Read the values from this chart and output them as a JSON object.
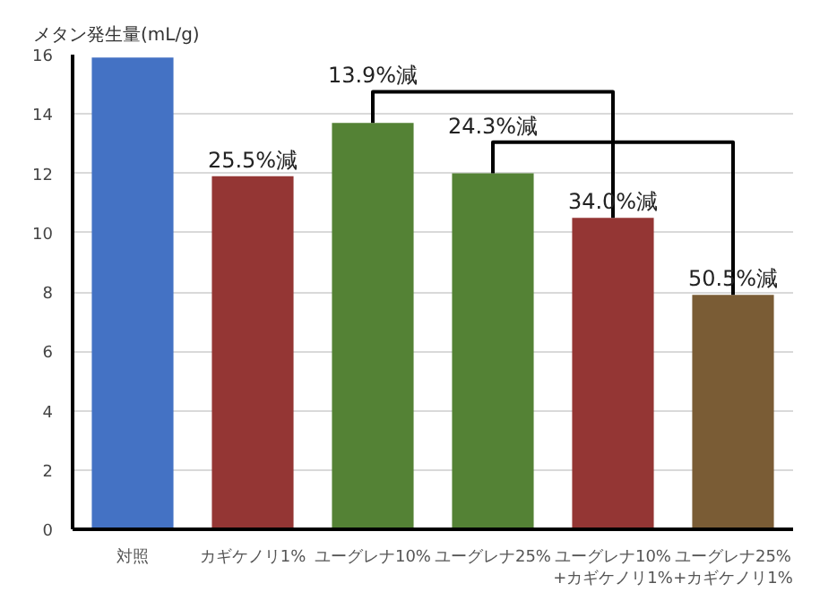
{
  "chart_data": {
    "type": "bar",
    "ylabel": "メタン発生量(mL/g)",
    "categories": [
      "対照",
      "カギケノリ1%",
      "ユーグレナ10%",
      "ユーグレナ25%",
      "ユーグレナ10%\n+カギケノリ1%",
      "ユーグレナ25%\n+カギケノリ1%"
    ],
    "values": [
      15.9,
      11.9,
      13.7,
      12.0,
      10.5,
      7.9
    ],
    "colors": [
      "#4472c4",
      "#943634",
      "#548235",
      "#548235",
      "#943634",
      "#7a5c35"
    ],
    "ylim": [
      0,
      16
    ],
    "yticks": [
      0,
      2,
      4,
      6,
      8,
      10,
      12,
      14,
      16
    ],
    "grid": "y",
    "annotations": [
      {
        "text": "25.5%減",
        "x": "カギケノリ1%",
        "y": 11.9
      },
      "13.9%減",
      "24.3%減",
      {
        "text": "34.0%減",
        "x": "ユーグレナ10%\n+カギケノリ1%",
        "y": 10.5
      },
      {
        "text": "50.5%減",
        "x": "ユーグレナ25%\n+カギケノリ1%",
        "y": 7.9
      }
    ]
  }
}
